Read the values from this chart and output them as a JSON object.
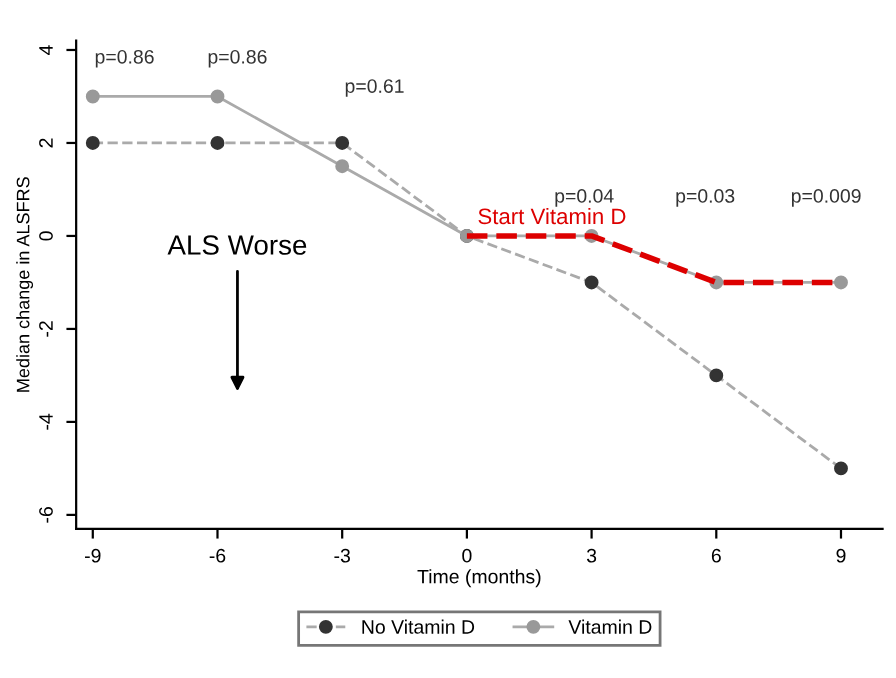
{
  "chart_data": {
    "type": "line",
    "xlabel": "Time (months)",
    "ylabel": "Median change in ALSFRS",
    "xlim": [
      -9.4,
      10
    ],
    "ylim": [
      -6.3,
      4.2
    ],
    "xticks": [
      -9,
      -6,
      -3,
      0,
      3,
      6,
      9
    ],
    "yticks": [
      -6,
      -4,
      -2,
      0,
      2,
      4
    ],
    "grid": false,
    "legend": "bottom",
    "marker": "circle",
    "series": [
      {
        "name": "No Vitamin D",
        "color": "#333333",
        "line_style": "dashed",
        "x": [
          -9,
          -6,
          -3,
          0,
          3,
          6,
          9
        ],
        "values": [
          2,
          2,
          2,
          0,
          -1,
          -3,
          -5
        ]
      },
      {
        "name": "Vitamin D",
        "color": "#999999",
        "line_style": "solid",
        "x": [
          -9,
          -6,
          -3,
          0,
          3,
          6,
          9
        ],
        "values": [
          3,
          3,
          1.5,
          0,
          0,
          -1,
          -1
        ]
      },
      {
        "color": "#dd0000",
        "line_style": "dashed",
        "marker": "none",
        "x": [
          0,
          3,
          6,
          9
        ],
        "values": [
          0,
          0,
          -1,
          -1
        ]
      }
    ],
    "annotations": [
      "p=0.86",
      "p=0.86",
      "p=0.61",
      "p=0.04",
      "p=0.03",
      "p=0.009",
      "Start Vitamin D",
      "ALS Worse"
    ]
  }
}
